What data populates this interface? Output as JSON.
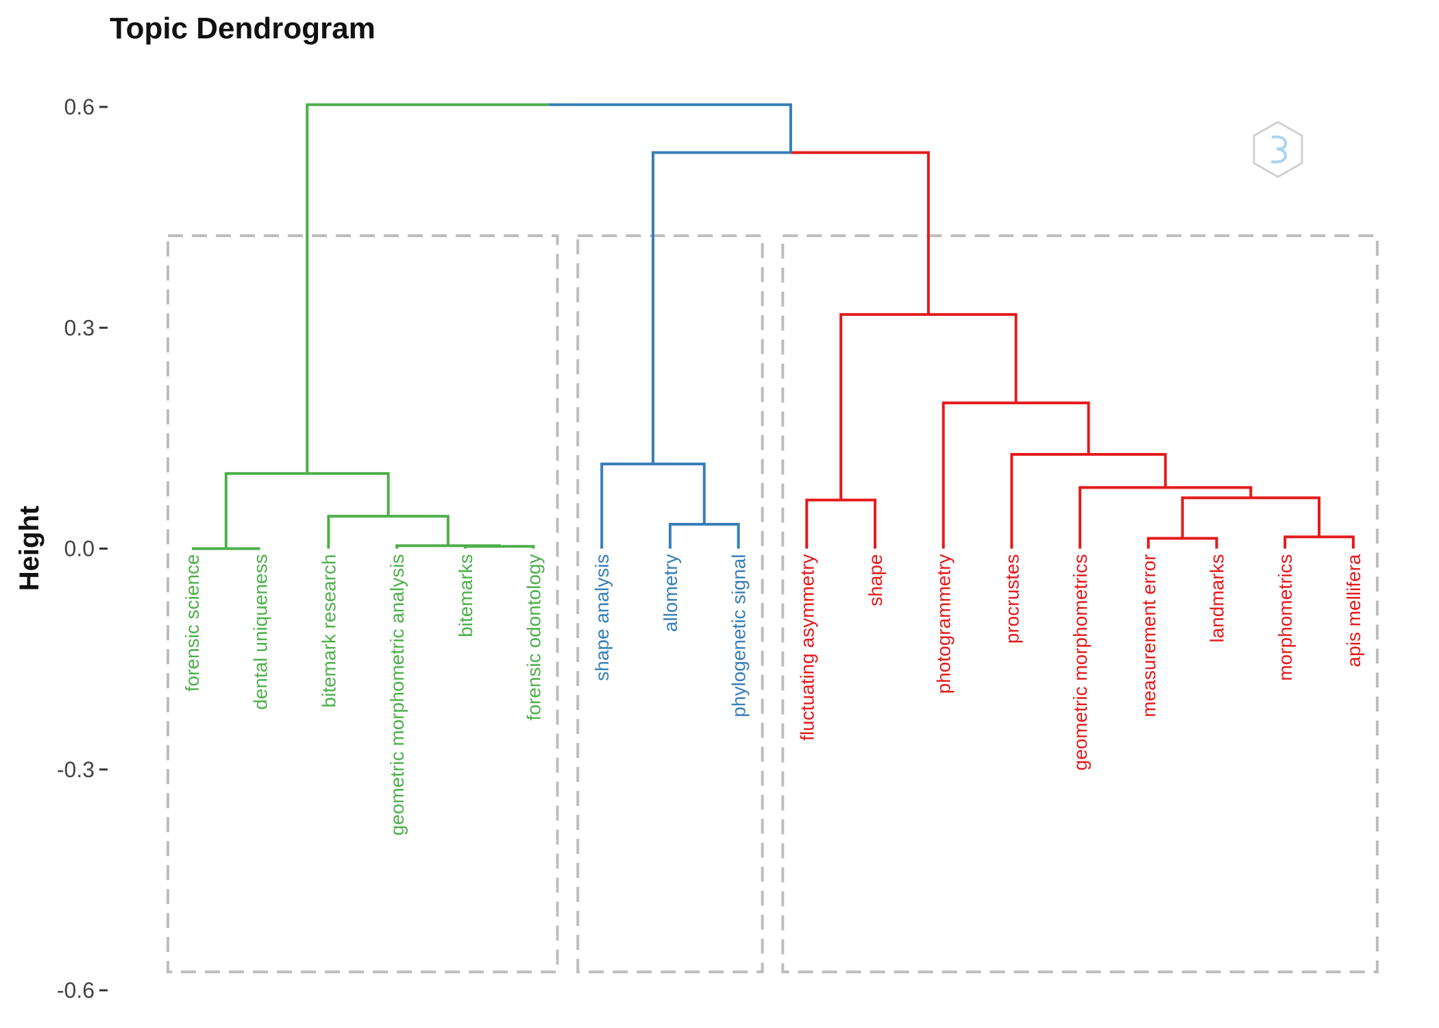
{
  "chart_data": {
    "type": "dendrogram",
    "title": "Topic Dendrogram",
    "ylabel": "Height",
    "xlabel": "",
    "ylim": [
      -0.6,
      0.6
    ],
    "yticks": [
      0.6,
      0.3,
      0.0,
      -0.3,
      -0.6
    ],
    "ytick_labels": [
      "0.6",
      "0.3",
      "0.0",
      "-0.3",
      "-0.6"
    ],
    "colors": {
      "cluster1": "#4daf4a",
      "cluster2": "#377eb8",
      "cluster3": "#e41a1c",
      "root": "#000000",
      "box": "#bdbdbd"
    },
    "leaves": [
      {
        "label": "forensic science",
        "cluster": 1
      },
      {
        "label": "dental uniqueness",
        "cluster": 1
      },
      {
        "label": "bitemark research",
        "cluster": 1
      },
      {
        "label": "geometric morphometric analysis",
        "cluster": 1
      },
      {
        "label": "bitemarks",
        "cluster": 1
      },
      {
        "label": "forensic odontology",
        "cluster": 1
      },
      {
        "label": "shape analysis",
        "cluster": 2
      },
      {
        "label": "allometry",
        "cluster": 2
      },
      {
        "label": "phylogenetic signal",
        "cluster": 2
      },
      {
        "label": "fluctuating asymmetry",
        "cluster": 3
      },
      {
        "label": "shape",
        "cluster": 3
      },
      {
        "label": "photogrammetry",
        "cluster": 3
      },
      {
        "label": "procrustes",
        "cluster": 3
      },
      {
        "label": "geometric morphometrics",
        "cluster": 3
      },
      {
        "label": "measurement error",
        "cluster": 3
      },
      {
        "label": "landmarks",
        "cluster": 3
      },
      {
        "label": "morphometrics",
        "cluster": 3
      },
      {
        "label": "apis mellifera",
        "cluster": 3
      }
    ],
    "merges": [
      {
        "a": 4,
        "b": 5,
        "height": 0.003,
        "cluster": 1
      },
      {
        "a": 3,
        "b": -1,
        "height": 0.004,
        "cluster": 1
      },
      {
        "a": 2,
        "b": -2,
        "height": 0.044,
        "cluster": 1
      },
      {
        "a": 0,
        "b": 1,
        "height": 0.0,
        "cluster": 1
      },
      {
        "a": -4,
        "b": -3,
        "height": 0.102,
        "cluster": 1
      },
      {
        "a": 7,
        "b": 8,
        "height": 0.033,
        "cluster": 2
      },
      {
        "a": 6,
        "b": -6,
        "height": 0.115,
        "cluster": 2
      },
      {
        "a": 14,
        "b": 15,
        "height": 0.014,
        "cluster": 3
      },
      {
        "a": 16,
        "b": 17,
        "height": 0.016,
        "cluster": 3
      },
      {
        "a": -8,
        "b": -9,
        "height": 0.069,
        "cluster": 3
      },
      {
        "a": 13,
        "b": -10,
        "height": 0.083,
        "cluster": 3
      },
      {
        "a": 12,
        "b": -11,
        "height": 0.128,
        "cluster": 3
      },
      {
        "a": 11,
        "b": -12,
        "height": 0.198,
        "cluster": 3
      },
      {
        "a": 9,
        "b": 10,
        "height": 0.066,
        "cluster": 3
      },
      {
        "a": -14,
        "b": -13,
        "height": 0.318,
        "cluster": 3
      },
      {
        "a": -7,
        "b": -15,
        "height": 0.538,
        "cluster": 0
      },
      {
        "a": -5,
        "b": -16,
        "height": 0.603,
        "cluster": 0
      }
    ],
    "branch_colors": {
      "-16": 2,
      "-15": 3,
      "-5": 1,
      "-7": 2
    },
    "cluster_boxes": [
      {
        "cluster": 1,
        "first_leaf": 0,
        "last_leaf": 5
      },
      {
        "cluster": 2,
        "first_leaf": 6,
        "last_leaf": 8
      },
      {
        "cluster": 3,
        "first_leaf": 9,
        "last_leaf": 17
      }
    ],
    "box_range": [
      -0.575,
      0.425
    ]
  }
}
